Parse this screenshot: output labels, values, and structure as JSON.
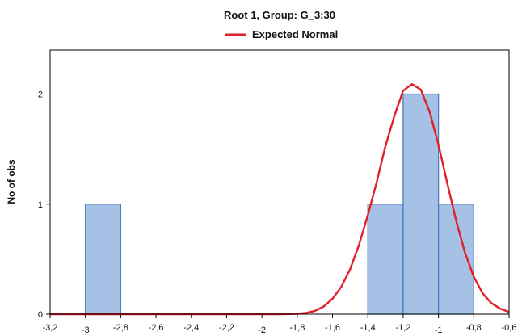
{
  "chart_data": {
    "type": "bar",
    "title": "Root  1, Group: G_3:30",
    "xlabel": "",
    "ylabel": "No of obs",
    "xlim": [
      -3.2,
      -0.6
    ],
    "ylim": [
      0,
      2.4
    ],
    "grid": true,
    "legend_position": "top-center",
    "bars": [
      {
        "x0": -3.0,
        "x1": -2.8,
        "value": 1
      },
      {
        "x0": -1.4,
        "x1": -1.2,
        "value": 1
      },
      {
        "x0": -1.2,
        "x1": -1.0,
        "value": 2
      },
      {
        "x0": -1.0,
        "x1": -0.8,
        "value": 1
      }
    ],
    "curve": {
      "name": "Expected Normal",
      "x": [
        -3.2,
        -3.1,
        -3.0,
        -2.9,
        -2.8,
        -2.7,
        -2.6,
        -2.5,
        -2.4,
        -2.3,
        -2.2,
        -2.1,
        -2.0,
        -1.9,
        -1.8,
        -1.75,
        -1.7,
        -1.65,
        -1.6,
        -1.55,
        -1.5,
        -1.45,
        -1.4,
        -1.35,
        -1.3,
        -1.25,
        -1.2,
        -1.15,
        -1.1,
        -1.05,
        -1.0,
        -0.95,
        -0.9,
        -0.85,
        -0.8,
        -0.75,
        -0.7,
        -0.65,
        -0.6
      ],
      "y": [
        0,
        0,
        0,
        0,
        0,
        0,
        0,
        0,
        0,
        0,
        0,
        0,
        0,
        0,
        0.004,
        0.011,
        0.03,
        0.07,
        0.14,
        0.25,
        0.41,
        0.63,
        0.9,
        1.2,
        1.53,
        1.8,
        2.03,
        2.09,
        2.04,
        1.84,
        1.54,
        1.19,
        0.85,
        0.56,
        0.34,
        0.19,
        0.1,
        0.05,
        0.02
      ]
    },
    "x_ticks": [
      {
        "v": -3.2,
        "label": "-3,2"
      },
      {
        "v": -3.0,
        "label": "-3"
      },
      {
        "v": -2.8,
        "label": "-2,8"
      },
      {
        "v": -2.6,
        "label": "-2,6"
      },
      {
        "v": -2.4,
        "label": "-2,4"
      },
      {
        "v": -2.2,
        "label": "-2,2"
      },
      {
        "v": -2.0,
        "label": "-2"
      },
      {
        "v": -1.8,
        "label": "-1,8"
      },
      {
        "v": -1.6,
        "label": "-1,6"
      },
      {
        "v": -1.4,
        "label": "-1,4"
      },
      {
        "v": -1.2,
        "label": "-1,2"
      },
      {
        "v": -1.0,
        "label": "-1"
      },
      {
        "v": -0.8,
        "label": "-0,8"
      },
      {
        "v": -0.6,
        "label": "-0,6"
      }
    ],
    "y_ticks": [
      {
        "v": 0,
        "label": "0"
      },
      {
        "v": 1,
        "label": "1"
      },
      {
        "v": 2,
        "label": "2"
      }
    ],
    "colors": {
      "bar_fill": "#a6c1e6",
      "bar_stroke": "#4a7fc0",
      "curve": "#e0202a",
      "grid": "#9a9a9a"
    }
  }
}
